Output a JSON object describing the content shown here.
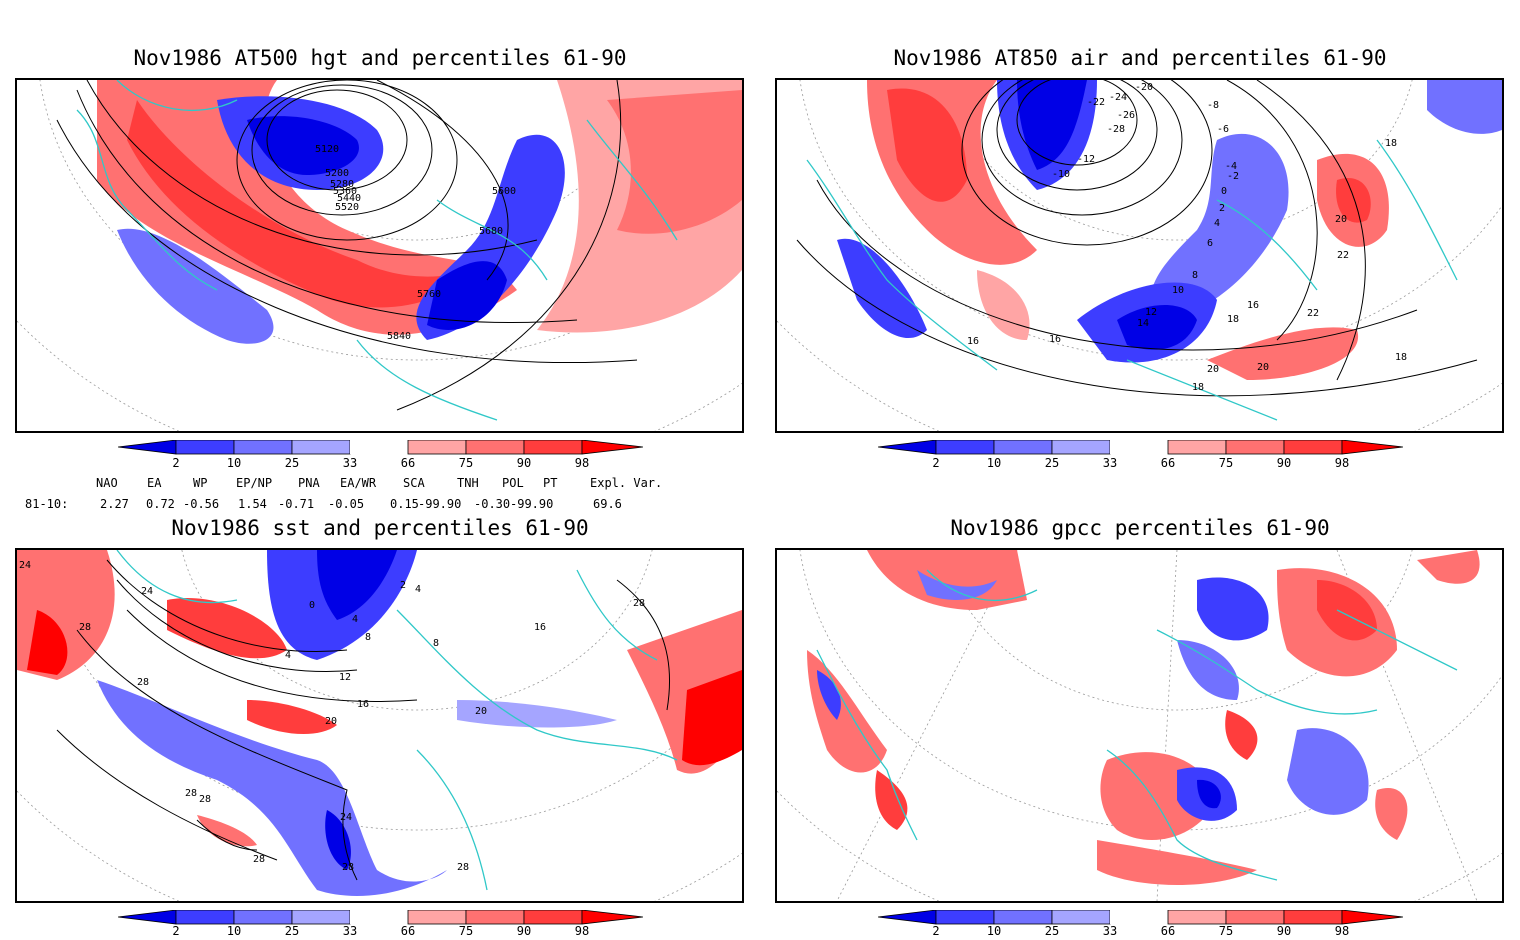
{
  "panels": [
    {
      "title": "Nov1986 AT500 hgt and percentiles 61-90",
      "contour_labels": [
        "5120",
        "5200",
        "5280",
        "5360",
        "5440",
        "5520",
        "5600",
        "5680",
        "5760",
        "5840"
      ]
    },
    {
      "title": "Nov1986 AT850 air and percentiles 61-90",
      "contour_labels": [
        "-20",
        "-22",
        "-24",
        "-26",
        "-28",
        "-12",
        "-10",
        "-8",
        "-6",
        "-4",
        "-2",
        "0",
        "2",
        "4",
        "6",
        "8",
        "10",
        "12",
        "14",
        "16",
        "16",
        "16",
        "18",
        "18",
        "18",
        "18",
        "20",
        "20",
        "20",
        "22",
        "22"
      ]
    },
    {
      "title": "Nov1986 sst and percentiles 61-90",
      "contour_labels": [
        "24",
        "24",
        "28",
        "28",
        "28",
        "0",
        "2",
        "4",
        "4",
        "4",
        "8",
        "8",
        "12",
        "16",
        "16",
        "20",
        "20",
        "24",
        "28",
        "28",
        "28",
        "28",
        "28"
      ]
    },
    {
      "title": "Nov1986 gpcc percentiles 61-90",
      "contour_labels": []
    }
  ],
  "colorbar": {
    "ticks": [
      "2",
      "10",
      "25",
      "33",
      "66",
      "75",
      "90",
      "98"
    ],
    "colors": [
      "#0000e6",
      "#3d3dff",
      "#7171ff",
      "#a5a5ff",
      "#ffffff",
      "#ffa5a5",
      "#ff7171",
      "#ff3d3d",
      "#ff0000"
    ]
  },
  "indices": {
    "headers": [
      "NAO",
      "EA",
      "WP",
      "EP/NP",
      "PNA",
      "EA/WR",
      "SCA",
      "TNH",
      "POL",
      "PT",
      "Expl. Var."
    ],
    "period": "81-10:",
    "values": [
      "2.27",
      "0.72",
      "-0.56",
      "1.54",
      "-0.71",
      "-0.05",
      "0.15",
      "-99.90",
      "-0.30",
      "-99.90",
      "69.6"
    ]
  }
}
